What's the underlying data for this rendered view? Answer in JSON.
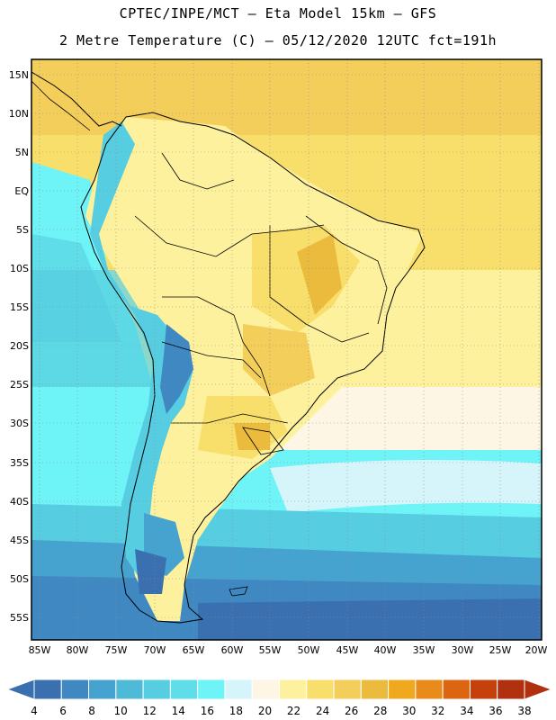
{
  "title": {
    "line1": "CPTEC/INPE/MCT — Eta Model 15km — GFS",
    "line2": "2 Metre Temperature (C) — 05/12/2020 12UTC fct=191h"
  },
  "map": {
    "lat_labels": [
      "15N",
      "10N",
      "5N",
      "EQ",
      "5S",
      "10S",
      "15S",
      "20S",
      "25S",
      "30S",
      "35S",
      "40S",
      "45S",
      "50S",
      "55S"
    ],
    "lon_labels": [
      "85W",
      "80W",
      "75W",
      "70W",
      "65W",
      "60W",
      "55W",
      "50W",
      "45W",
      "40W",
      "35W",
      "30W",
      "25W",
      "20W"
    ],
    "gridlines": true
  },
  "colorbar": {
    "ticks": [
      "4",
      "6",
      "8",
      "10",
      "12",
      "14",
      "16",
      "18",
      "20",
      "22",
      "24",
      "26",
      "28",
      "30",
      "32",
      "34",
      "36",
      "38"
    ],
    "colors": [
      "#3a6fb0",
      "#3f88c2",
      "#46a3cf",
      "#4ebad8",
      "#56cde0",
      "#5fdde8",
      "#6ef3f6",
      "#d6f5fb",
      "#fdf6e4",
      "#fdf19d",
      "#f8de6a",
      "#f3ce5a",
      "#ebbb3e",
      "#f0a81e",
      "#e98b1a",
      "#dc6512",
      "#c5400a",
      "#b03010"
    ]
  }
}
